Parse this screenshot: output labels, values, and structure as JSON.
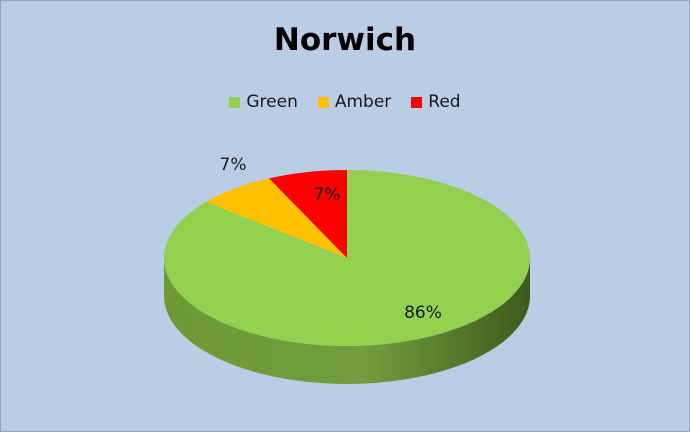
{
  "chart_data": {
    "type": "pie",
    "title": "Norwich",
    "legend_position": "top",
    "three_d": true,
    "slices": [
      {
        "label": "Green",
        "value": 86,
        "display": "86%",
        "color": "#92d050",
        "side_color": "#6e9a35"
      },
      {
        "label": "Amber",
        "value": 7,
        "display": "7%",
        "color": "#ffc000",
        "side_color": "#c28f00"
      },
      {
        "label": "Red",
        "value": 7,
        "display": "7%",
        "color": "#ff0000",
        "side_color": "#b40000"
      }
    ]
  }
}
